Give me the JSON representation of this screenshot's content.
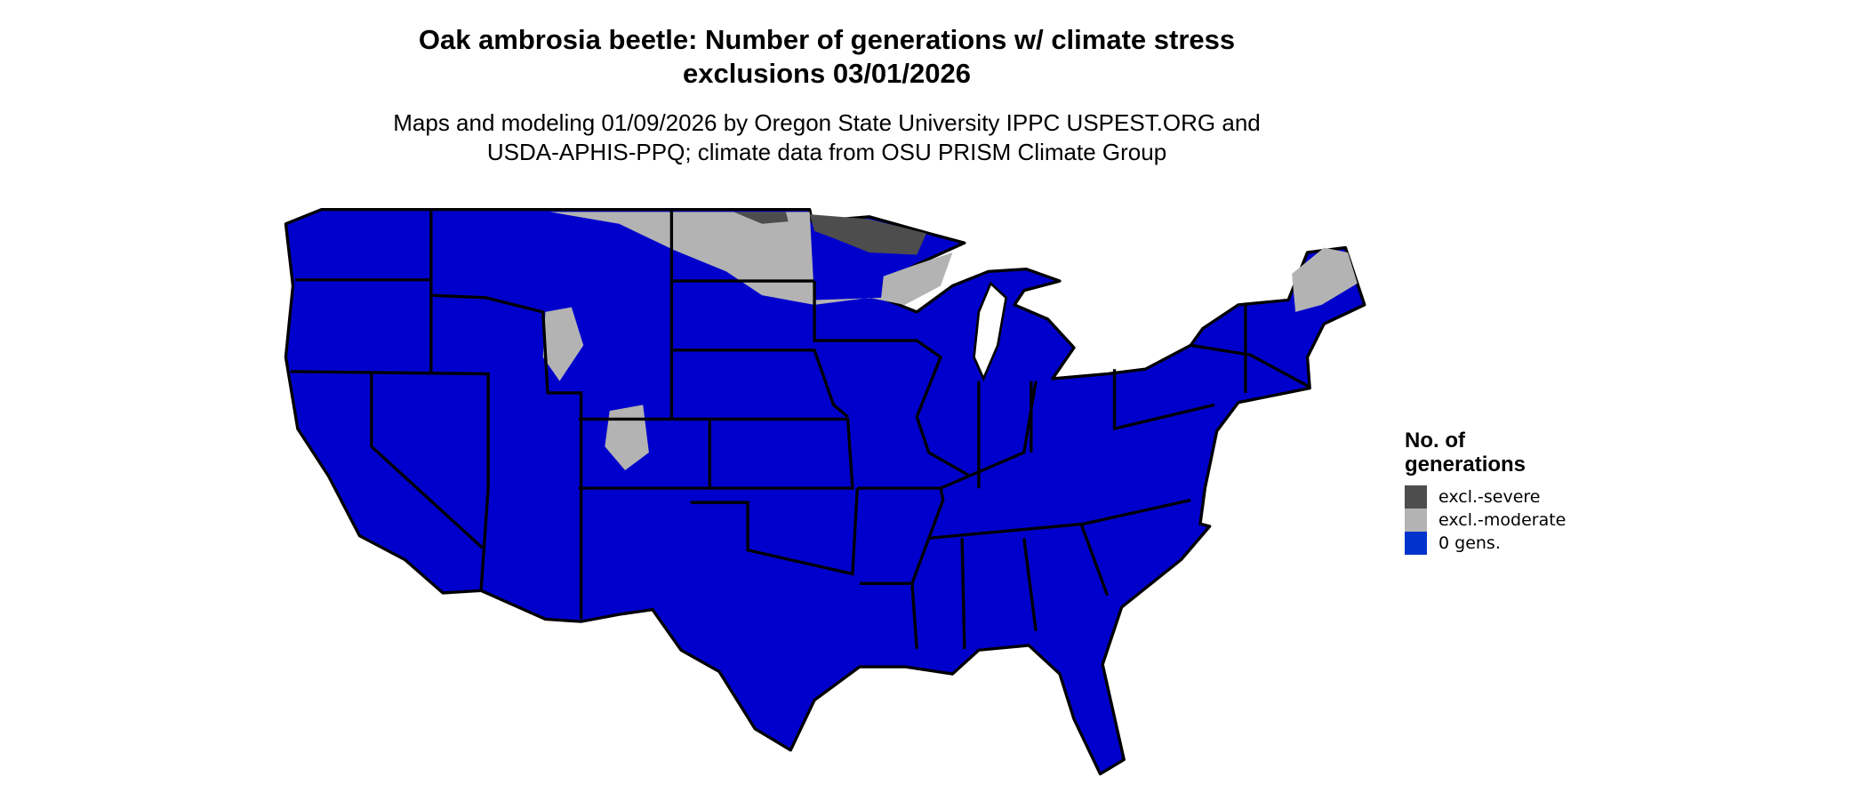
{
  "title_line1": "Oak ambrosia beetle: Number of generations w/ climate stress",
  "title_line2": "exclusions 03/01/2026",
  "subtitle_line1": "Maps and modeling 01/09/2026 by Oregon State University IPPC USPEST.ORG and",
  "subtitle_line2": "USDA-APHIS-PPQ; climate data from OSU PRISM Climate Group",
  "legend": {
    "title_line1": "No. of",
    "title_line2": "generations",
    "items": [
      {
        "label": "excl.-severe",
        "color": "#4d4d4d"
      },
      {
        "label": "excl.-moderate",
        "color": "#b3b3b3"
      },
      {
        "label": "0 gens.",
        "color": "#0033cc"
      }
    ]
  },
  "colors": {
    "map_fill": "#0000cc",
    "moderate": "#b3b3b3",
    "severe": "#4d4d4d",
    "borders": "#000000"
  }
}
